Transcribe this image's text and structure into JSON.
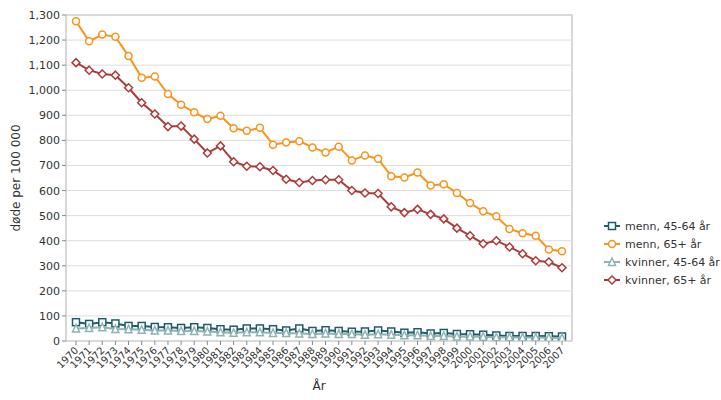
{
  "chart_data": {
    "type": "line",
    "x_label": "År",
    "y_label": "døde per 100 000",
    "categories": [
      "1970",
      "1971",
      "1972",
      "1973",
      "1974",
      "1975",
      "1976",
      "1977",
      "1978",
      "1979",
      "1980",
      "1981",
      "1982",
      "1983",
      "1984",
      "1985",
      "1986",
      "1987",
      "1988",
      "1989",
      "1990",
      "1991",
      "1992",
      "1993",
      "1994",
      "1995",
      "1996",
      "1997",
      "1998",
      "1999",
      "2000",
      "2001",
      "2002",
      "2003",
      "2004",
      "2005",
      "2006",
      "2007"
    ],
    "series": [
      {
        "name": "menn, 45-64 år",
        "color": "#1f5c6b",
        "marker": "square",
        "values": [
          75,
          68,
          75,
          70,
          60,
          60,
          56,
          55,
          52,
          55,
          52,
          47,
          45,
          50,
          50,
          47,
          42,
          50,
          40,
          43,
          40,
          37,
          38,
          42,
          38,
          33,
          35,
          30,
          32,
          28,
          27,
          25,
          22,
          20,
          20,
          20,
          19,
          18
        ]
      },
      {
        "name": "menn, 65+ år",
        "color": "#f7941d",
        "marker": "circle",
        "values": [
          1275,
          1195,
          1222,
          1213,
          1137,
          1050,
          1055,
          985,
          942,
          912,
          885,
          898,
          848,
          838,
          850,
          783,
          792,
          797,
          772,
          752,
          775,
          720,
          740,
          727,
          657,
          652,
          672,
          620,
          625,
          590,
          550,
          517,
          497,
          447,
          430,
          420,
          365,
          358
        ]
      },
      {
        "name": "kvinner, 45-64 år",
        "color": "#8fb3b3",
        "marker": "triangle",
        "values": [
          50,
          52,
          55,
          48,
          47,
          45,
          42,
          42,
          40,
          40,
          38,
          35,
          33,
          35,
          35,
          32,
          32,
          30,
          28,
          30,
          28,
          28,
          25,
          27,
          25,
          23,
          23,
          20,
          20,
          18,
          18,
          17,
          15,
          15,
          14,
          14,
          13,
          12
        ]
      },
      {
        "name": "kvinner, 65+ år",
        "color": "#a93c3c",
        "marker": "diamond",
        "values": [
          1110,
          1080,
          1065,
          1060,
          1010,
          950,
          905,
          855,
          857,
          805,
          750,
          778,
          715,
          697,
          695,
          680,
          645,
          632,
          640,
          643,
          643,
          600,
          590,
          588,
          535,
          512,
          525,
          505,
          487,
          450,
          420,
          388,
          400,
          375,
          348,
          320,
          315,
          292
        ]
      }
    ],
    "ylim": [
      0,
      1300
    ],
    "yticks": [
      0,
      100,
      200,
      300,
      400,
      500,
      600,
      700,
      800,
      900,
      {
        "value": 1000,
        "label": "1,000"
      },
      {
        "value": 1100,
        "label": "1,100"
      },
      {
        "value": 1200,
        "label": "1,200"
      },
      {
        "value": 1300,
        "label": "1,300"
      }
    ],
    "grid": true,
    "legend": "right"
  }
}
